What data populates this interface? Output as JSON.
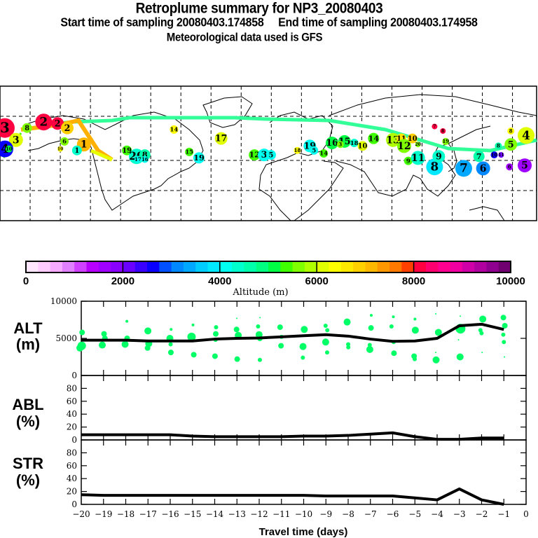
{
  "header": {
    "title": "Retroplume summary for NP3_20080403",
    "subtitle": "Start time of sampling 20080403.174858     End time of sampling 20080403.174958",
    "met_line": "Meteorological data used is GFS"
  },
  "colors": {
    "alt_dots": "#00ff66",
    "line": "#000000"
  },
  "colorbar": {
    "label": "Altitude (m)",
    "ticks": [
      "0",
      "2000",
      "4000",
      "6000",
      "8000",
      "10000"
    ],
    "range": [
      0,
      10000
    ],
    "colors": [
      "#ffe6ff",
      "#ffccff",
      "#f5aaff",
      "#e080ff",
      "#d040ff",
      "#b800ff",
      "#a000ff",
      "#8a00ff",
      "#6a00ff",
      "#3a00ff",
      "#0a00ff",
      "#0050ff",
      "#0088ff",
      "#00a8ff",
      "#00ccff",
      "#00e8ff",
      "#00fff0",
      "#00ffcc",
      "#00ffaa",
      "#00ff80",
      "#00ff44",
      "#40ff00",
      "#80ff00",
      "#b0ff00",
      "#e0ff00",
      "#ffff00",
      "#ffe800",
      "#ffd000",
      "#ffb800",
      "#ff9800",
      "#ff7800",
      "#ff4000",
      "#ff0040",
      "#ff0070",
      "#ff0090",
      "#f000a0",
      "#d000a8",
      "#b000a0",
      "#900090",
      "#700070"
    ]
  },
  "map": {
    "plumes": [
      {
        "label": "3",
        "lon": -178,
        "lat": 62,
        "r": 14,
        "alt": 8100
      },
      {
        "label": "2",
        "lon": -150,
        "lat": 66,
        "r": 12,
        "alt": 8200
      },
      {
        "label": "2",
        "lon": -140,
        "lat": 65,
        "r": 9,
        "alt": 8100
      },
      {
        "label": "2",
        "lon": -133,
        "lat": 62,
        "r": 9,
        "alt": 6800
      },
      {
        "label": "8",
        "lon": -162,
        "lat": 62,
        "r": 7,
        "alt": 5600
      },
      {
        "label": "3",
        "lon": -170,
        "lat": 54,
        "r": 10,
        "alt": 6100
      },
      {
        "label": "4",
        "lon": -178,
        "lat": 48,
        "r": 12,
        "alt": 2600
      },
      {
        "label": "10",
        "lon": -175,
        "lat": 48,
        "r": 5,
        "alt": 5200
      },
      {
        "label": "1",
        "lon": -121,
        "lat": 51,
        "r": 10,
        "alt": 7000
      },
      {
        "label": "1",
        "lon": -126,
        "lat": 47,
        "r": 7,
        "alt": 4300
      },
      {
        "label": "6",
        "lon": -135,
        "lat": 53,
        "r": 6,
        "alt": 5500
      },
      {
        "label": "10",
        "lon": -138,
        "lat": 48,
        "r": 4,
        "alt": 6400
      },
      {
        "label": "19",
        "lon": -90,
        "lat": 47,
        "r": 7,
        "alt": 5300
      },
      {
        "label": "20",
        "lon": -83,
        "lat": 43,
        "r": 11,
        "alt": 4300
      },
      {
        "label": "8",
        "lon": -77,
        "lat": 44,
        "r": 8,
        "alt": 4700
      },
      {
        "label": "17",
        "lon": -82,
        "lat": 41,
        "r": 5,
        "alt": 4200
      },
      {
        "label": "16",
        "lon": -77,
        "lat": 41,
        "r": 5,
        "alt": 4100
      },
      {
        "label": "15",
        "lon": -45,
        "lat": 46,
        "r": 6,
        "alt": 5400
      },
      {
        "label": "19",
        "lon": -38,
        "lat": 42,
        "r": 8,
        "alt": 4100
      },
      {
        "label": "17",
        "lon": -22,
        "lat": 55,
        "r": 9,
        "alt": 6200
      },
      {
        "label": "14",
        "lon": -56,
        "lat": 61,
        "r": 6,
        "alt": 6400
      },
      {
        "label": "12",
        "lon": 2,
        "lat": 44,
        "r": 8,
        "alt": 5300
      },
      {
        "label": "3",
        "lon": 9,
        "lat": 44,
        "r": 9,
        "alt": 4000
      },
      {
        "label": "5",
        "lon": 14,
        "lat": 44,
        "r": 7,
        "alt": 4100
      },
      {
        "label": "19",
        "lon": 42,
        "lat": 50,
        "r": 9,
        "alt": 4200
      },
      {
        "label": "5",
        "lon": 45,
        "lat": 47,
        "r": 6,
        "alt": 4200
      },
      {
        "label": "18",
        "lon": 33,
        "lat": 47,
        "r": 5,
        "alt": 6300
      },
      {
        "label": "14",
        "lon": 52,
        "lat": 45,
        "r": 6,
        "alt": 5300
      },
      {
        "label": "16",
        "lon": 58,
        "lat": 52,
        "r": 9,
        "alt": 5100
      },
      {
        "label": "15",
        "lon": 67,
        "lat": 53,
        "r": 9,
        "alt": 5100
      },
      {
        "label": "3",
        "lon": 64,
        "lat": 51,
        "r": 5,
        "alt": 5600
      },
      {
        "label": "18",
        "lon": 74,
        "lat": 52,
        "r": 6,
        "alt": 4300
      },
      {
        "label": "10",
        "lon": 80,
        "lat": 50,
        "r": 7,
        "alt": 6200
      },
      {
        "label": "14",
        "lon": 88,
        "lat": 55,
        "r": 8,
        "alt": 5400
      },
      {
        "label": "13",
        "lon": 102,
        "lat": 54,
        "r": 10,
        "alt": 5800
      },
      {
        "label": "11",
        "lon": 108,
        "lat": 55,
        "r": 7,
        "alt": 6600
      },
      {
        "label": "10",
        "lon": 116,
        "lat": 55,
        "r": 7,
        "alt": 6800
      },
      {
        "label": "12",
        "lon": 110,
        "lat": 50,
        "r": 10,
        "alt": 5600
      },
      {
        "label": "20",
        "lon": 120,
        "lat": 51,
        "r": 4,
        "alt": 5600
      },
      {
        "label": "7",
        "lon": 132,
        "lat": 63,
        "r": 4,
        "alt": 8200
      },
      {
        "label": "8",
        "lon": 138,
        "lat": 60,
        "r": 4,
        "alt": 8200
      },
      {
        "label": "19",
        "lon": 140,
        "lat": 53,
        "r": 5,
        "alt": 5600
      },
      {
        "label": "9",
        "lon": 113,
        "lat": 40,
        "r": 6,
        "alt": 5300
      },
      {
        "label": "11",
        "lon": 120,
        "lat": 42,
        "r": 10,
        "alt": 4400
      },
      {
        "label": "8",
        "lon": 132,
        "lat": 36,
        "r": 12,
        "alt": 3900
      },
      {
        "label": "9",
        "lon": 135,
        "lat": 43,
        "r": 9,
        "alt": 4400
      },
      {
        "label": "7",
        "lon": 153,
        "lat": 35,
        "r": 12,
        "alt": 3300
      },
      {
        "label": "6",
        "lon": 167,
        "lat": 35,
        "r": 10,
        "alt": 3100
      },
      {
        "label": "7",
        "lon": 164,
        "lat": 43,
        "r": 8,
        "alt": 4500
      },
      {
        "label": "10",
        "lon": 175,
        "lat": 44,
        "r": 5,
        "alt": 2600
      },
      {
        "label": "11",
        "lon": 180,
        "lat": 44,
        "r": 4,
        "alt": 2000
      },
      {
        "label": "8",
        "lon": 178,
        "lat": 50,
        "r": 5,
        "alt": 4500
      },
      {
        "label": "5",
        "lon": 187,
        "lat": 51,
        "r": 9,
        "alt": 5700
      },
      {
        "label": "8",
        "lon": 187,
        "lat": 60,
        "r": 5,
        "alt": 6300
      },
      {
        "label": "4",
        "lon": 198,
        "lat": 57,
        "r": 12,
        "alt": 6200
      },
      {
        "label": "6",
        "lon": 186,
        "lat": 36,
        "r": 5,
        "alt": 1500
      },
      {
        "label": "5",
        "lon": 197,
        "lat": 37,
        "r": 10,
        "alt": 1500
      }
    ]
  },
  "chart_data": [
    {
      "type": "scatter",
      "title": "ALT",
      "ylabel": "ALT (m)",
      "xlabel": "Travel time (days)",
      "xlim": [
        -20,
        0
      ],
      "ylim": [
        0,
        10000
      ],
      "yticks": [
        "0",
        "5000",
        "10000"
      ],
      "mean_line": {
        "x": [
          -20,
          -19,
          -18,
          -17,
          -16,
          -15,
          -14,
          -13,
          -12,
          -11,
          -10,
          -9,
          -8,
          -7,
          -6,
          -5,
          -4,
          -3,
          -2,
          -1
        ],
        "y": [
          4750,
          4750,
          4750,
          4650,
          4650,
          4650,
          4900,
          5000,
          5050,
          5200,
          5350,
          5500,
          5300,
          4900,
          4600,
          4650,
          5000,
          6700,
          6900,
          6200
        ]
      },
      "points": [
        {
          "x": -20,
          "y": 5800,
          "s": 4
        },
        {
          "x": -20,
          "y": 4000,
          "s": 6
        },
        {
          "x": -20,
          "y": 3700,
          "s": 5
        },
        {
          "x": -19,
          "y": 5600,
          "s": 4
        },
        {
          "x": -19,
          "y": 5000,
          "s": 4
        },
        {
          "x": -19,
          "y": 4100,
          "s": 5
        },
        {
          "x": -18,
          "y": 7300,
          "s": 2
        },
        {
          "x": -18,
          "y": 5000,
          "s": 4
        },
        {
          "x": -18,
          "y": 4200,
          "s": 5
        },
        {
          "x": -17,
          "y": 6000,
          "s": 5
        },
        {
          "x": -17,
          "y": 4300,
          "s": 5
        },
        {
          "x": -17,
          "y": 3700,
          "s": 4
        },
        {
          "x": -16,
          "y": 6200,
          "s": 2
        },
        {
          "x": -16,
          "y": 5000,
          "s": 5
        },
        {
          "x": -16,
          "y": 4200,
          "s": 3
        },
        {
          "x": -16,
          "y": 3100,
          "s": 4
        },
        {
          "x": -15,
          "y": 6800,
          "s": 2
        },
        {
          "x": -15,
          "y": 5200,
          "s": 6
        },
        {
          "x": -15,
          "y": 2800,
          "s": 4
        },
        {
          "x": -14,
          "y": 6500,
          "s": 3
        },
        {
          "x": -14,
          "y": 5600,
          "s": 4
        },
        {
          "x": -14,
          "y": 4800,
          "s": 3
        },
        {
          "x": -14,
          "y": 2600,
          "s": 4
        },
        {
          "x": -13,
          "y": 7700,
          "s": 1
        },
        {
          "x": -13,
          "y": 6200,
          "s": 4
        },
        {
          "x": -13,
          "y": 5400,
          "s": 5
        },
        {
          "x": -13,
          "y": 2200,
          "s": 4
        },
        {
          "x": -12,
          "y": 7800,
          "s": 1
        },
        {
          "x": -12,
          "y": 6600,
          "s": 3
        },
        {
          "x": -12,
          "y": 5500,
          "s": 5
        },
        {
          "x": -12,
          "y": 5000,
          "s": 4
        },
        {
          "x": -12,
          "y": 2100,
          "s": 3
        },
        {
          "x": -11,
          "y": 6500,
          "s": 4
        },
        {
          "x": -11,
          "y": 5200,
          "s": 3
        },
        {
          "x": -11,
          "y": 4000,
          "s": 4
        },
        {
          "x": -10,
          "y": 6200,
          "s": 5
        },
        {
          "x": -10,
          "y": 3900,
          "s": 5
        },
        {
          "x": -10,
          "y": 2400,
          "s": 3
        },
        {
          "x": -9,
          "y": 6700,
          "s": 3
        },
        {
          "x": -9,
          "y": 6100,
          "s": 3
        },
        {
          "x": -9,
          "y": 4500,
          "s": 5
        },
        {
          "x": -9,
          "y": 3100,
          "s": 3
        },
        {
          "x": -8,
          "y": 7200,
          "s": 5
        },
        {
          "x": -8,
          "y": 4200,
          "s": 3
        },
        {
          "x": -8,
          "y": 3800,
          "s": 3
        },
        {
          "x": -7,
          "y": 8100,
          "s": 2
        },
        {
          "x": -7,
          "y": 6400,
          "s": 4
        },
        {
          "x": -7,
          "y": 4100,
          "s": 3
        },
        {
          "x": -7,
          "y": 3500,
          "s": 5
        },
        {
          "x": -6,
          "y": 7900,
          "s": 2
        },
        {
          "x": -6,
          "y": 6600,
          "s": 3
        },
        {
          "x": -6,
          "y": 4500,
          "s": 3
        },
        {
          "x": -6,
          "y": 3000,
          "s": 4
        },
        {
          "x": -5,
          "y": 7600,
          "s": 2
        },
        {
          "x": -5,
          "y": 6100,
          "s": 5
        },
        {
          "x": -5,
          "y": 2600,
          "s": 4
        },
        {
          "x": -5,
          "y": 2200,
          "s": 3
        },
        {
          "x": -4,
          "y": 8300,
          "s": 1
        },
        {
          "x": -4,
          "y": 5800,
          "s": 5
        },
        {
          "x": -4,
          "y": 3100,
          "s": 1
        },
        {
          "x": -4,
          "y": 2100,
          "s": 5
        },
        {
          "x": -3,
          "y": 8000,
          "s": 1
        },
        {
          "x": -3,
          "y": 6300,
          "s": 7
        },
        {
          "x": -3,
          "y": 4800,
          "s": 1
        },
        {
          "x": -3,
          "y": 2500,
          "s": 5
        },
        {
          "x": -2,
          "y": 7600,
          "s": 5
        },
        {
          "x": -2,
          "y": 6100,
          "s": 3
        },
        {
          "x": -2,
          "y": 5700,
          "s": 3
        },
        {
          "x": -2,
          "y": 3100,
          "s": 1
        },
        {
          "x": -1,
          "y": 7800,
          "s": 4
        },
        {
          "x": -1,
          "y": 6700,
          "s": 4
        },
        {
          "x": -1,
          "y": 5500,
          "s": 3
        },
        {
          "x": -1,
          "y": 4500,
          "s": 3
        },
        {
          "x": -1,
          "y": 2500,
          "s": 1
        }
      ]
    },
    {
      "type": "line",
      "title": "ABL",
      "ylabel": "ABL (%)",
      "xlim": [
        -20,
        0
      ],
      "ylim": [
        0,
        100
      ],
      "yticks": [
        "0",
        "20",
        "40",
        "60",
        "80"
      ],
      "x": [
        -20,
        -19,
        -18,
        -17,
        -16,
        -15,
        -14,
        -13,
        -12,
        -11,
        -10,
        -9,
        -8,
        -7,
        -6,
        -5,
        -4,
        -3,
        -2,
        -1
      ],
      "y": [
        8,
        8,
        8,
        8,
        8,
        6,
        5,
        5,
        5,
        5,
        6,
        6,
        7,
        9,
        11,
        5,
        1,
        1,
        3,
        3
      ]
    },
    {
      "type": "line",
      "title": "STR",
      "ylabel": "STR (%)",
      "xlabel": "Travel time (days)",
      "xlim": [
        -20,
        0
      ],
      "ylim": [
        0,
        100
      ],
      "yticks": [
        "0",
        "20",
        "40",
        "60",
        "80"
      ],
      "xticks": [
        "-20",
        "-19",
        "-18",
        "-17",
        "-16",
        "-15",
        "-14",
        "-13",
        "-12",
        "-11",
        "-10",
        "-9",
        "-8",
        "-7",
        "-6",
        "-5",
        "-4",
        "-3",
        "-2",
        "-1",
        "0"
      ],
      "x": [
        -20,
        -19,
        -18,
        -17,
        -16,
        -15,
        -14,
        -13,
        -12,
        -11,
        -10,
        -9,
        -8,
        -7,
        -6,
        -5,
        -4,
        -3,
        -2,
        -1
      ],
      "y": [
        15,
        14,
        14,
        14,
        14,
        14,
        14,
        14,
        14,
        14,
        14,
        13,
        13,
        13,
        13,
        10,
        7,
        24,
        7,
        0
      ]
    }
  ],
  "panels": {
    "alt_label": "ALT",
    "alt_unit": "(m)",
    "abl_label": "ABL",
    "abl_unit": "(%)",
    "str_label": "STR",
    "str_unit": "(%)",
    "xlabel": "Travel time (days)"
  }
}
